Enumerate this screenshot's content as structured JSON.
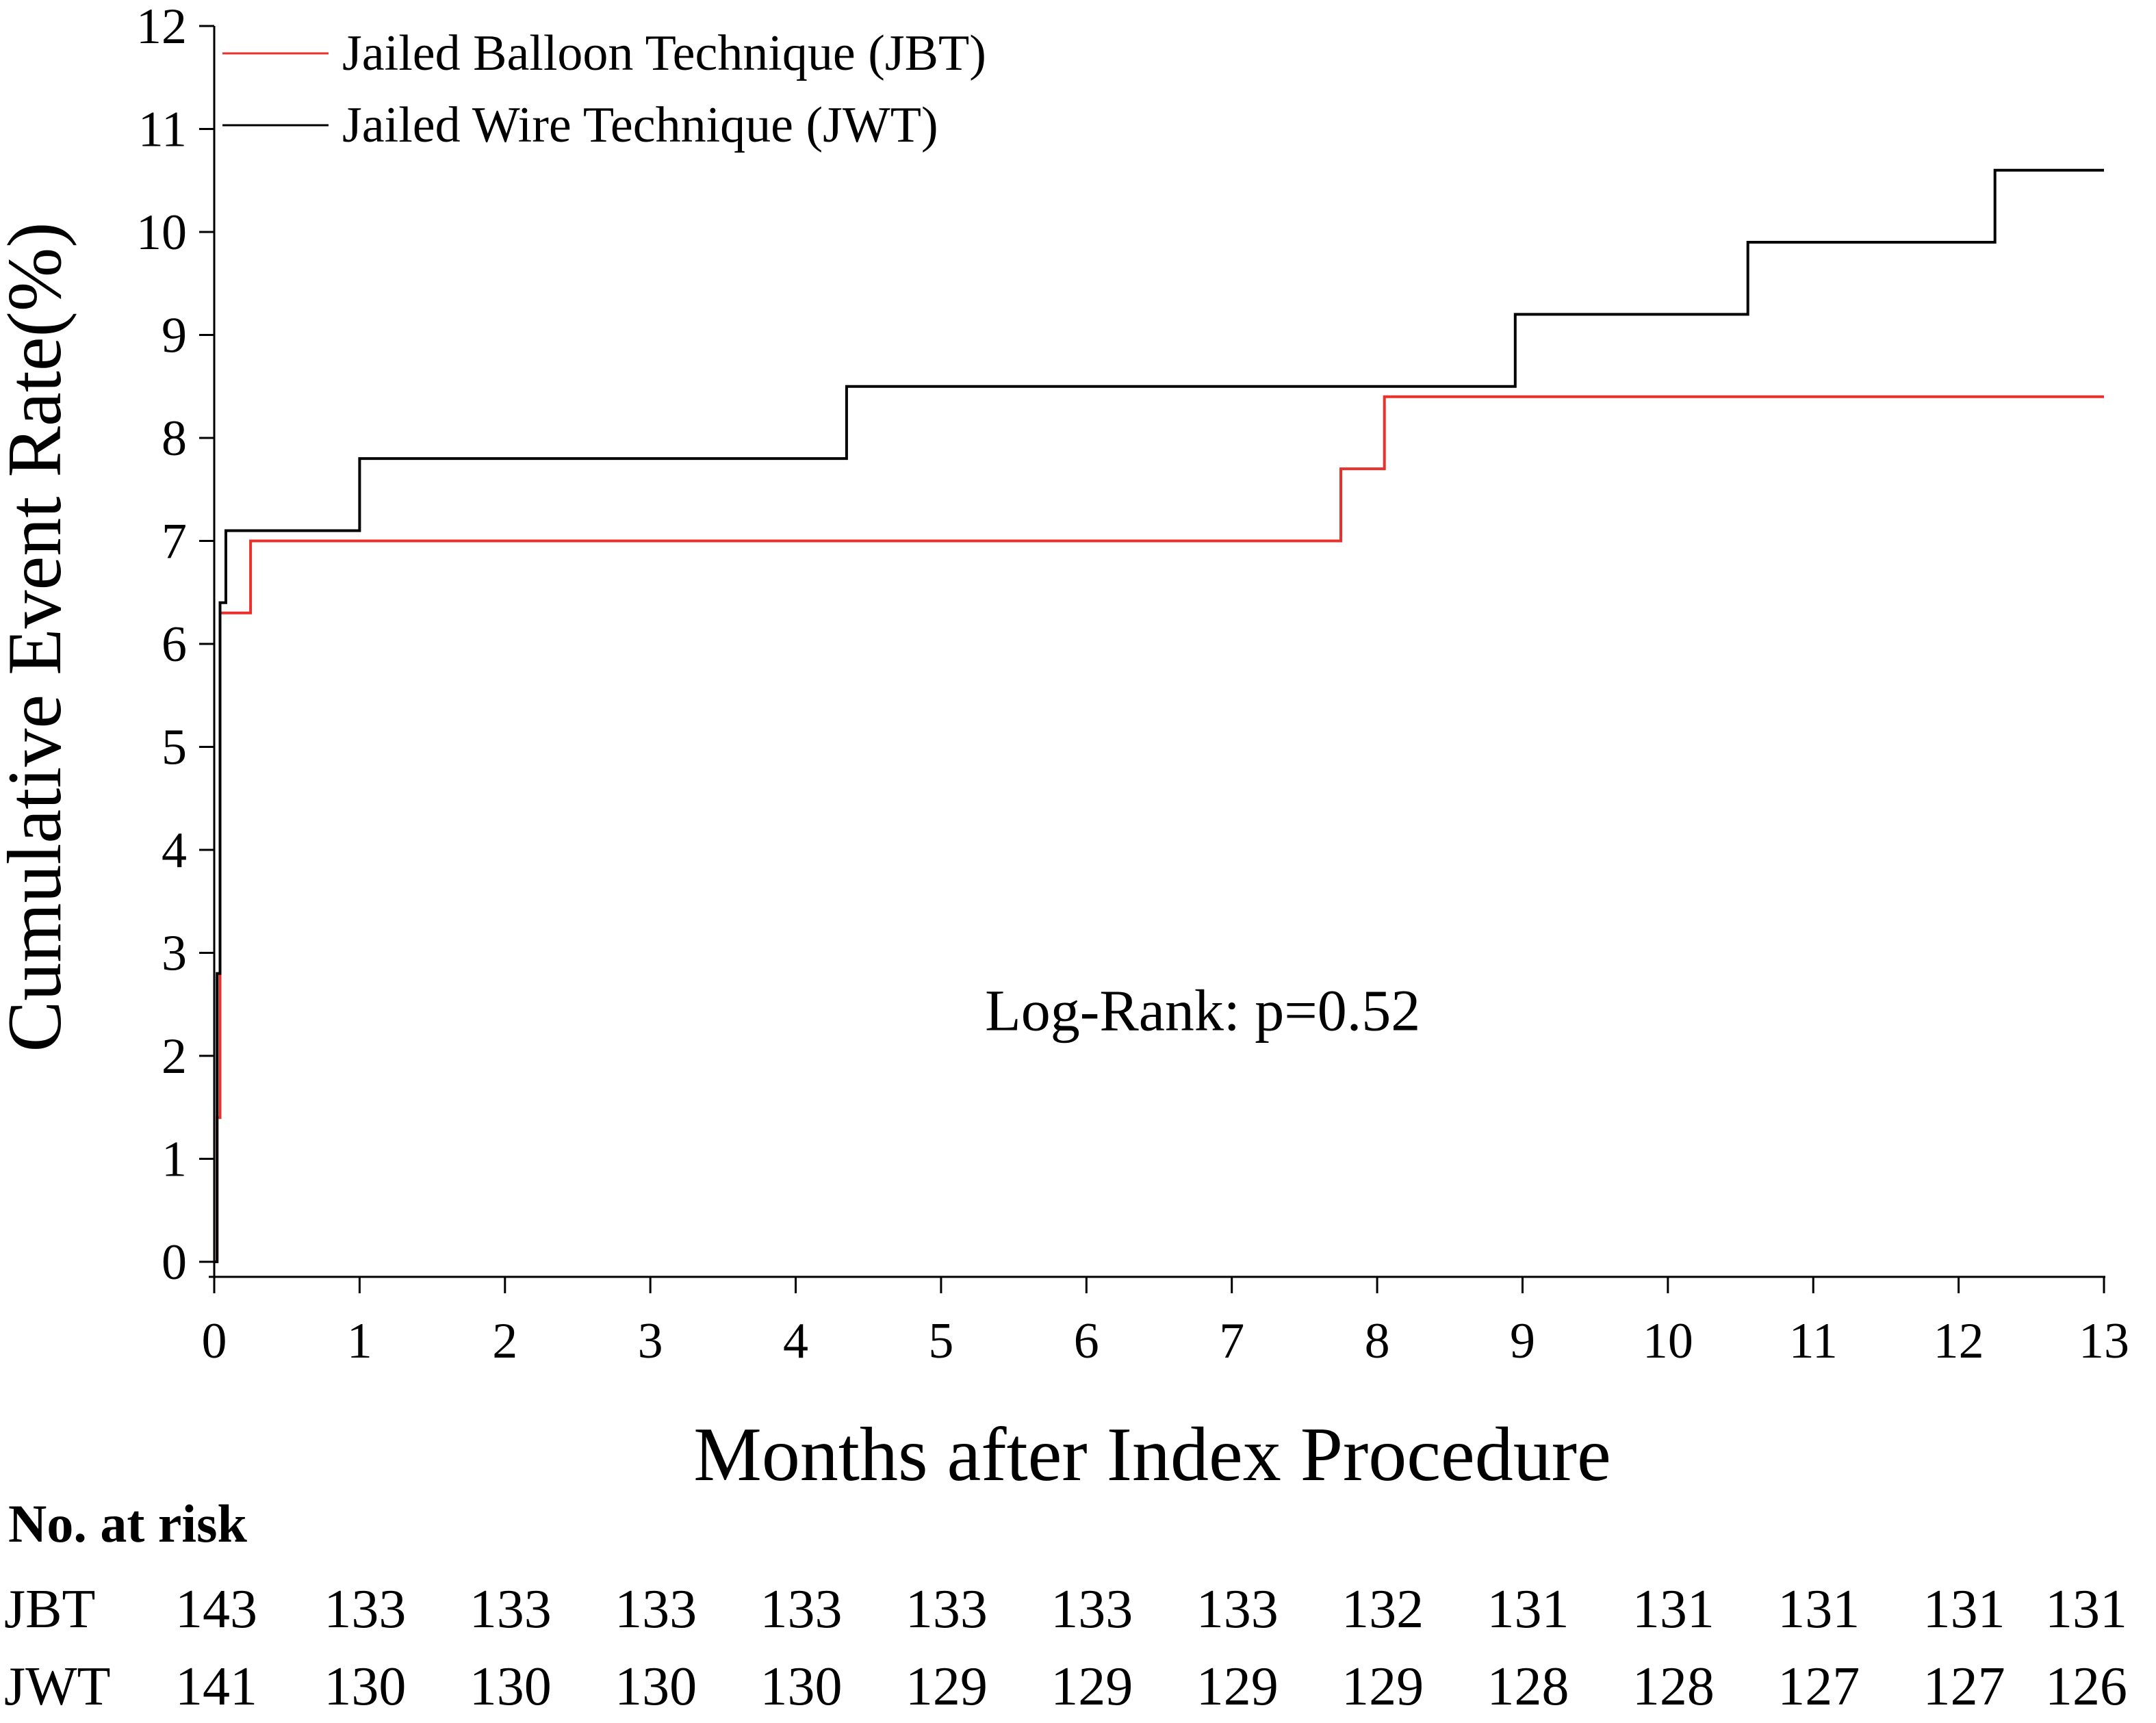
{
  "chart_data": {
    "type": "line",
    "step": true,
    "title": "",
    "xlabel": "Months after Index Procedure",
    "ylabel": "Cumulative Event Rate(%)",
    "xlim": [
      0,
      13
    ],
    "ylim": [
      0,
      12
    ],
    "x_ticks": [
      "0",
      "1",
      "2",
      "3",
      "4",
      "5",
      "6",
      "7",
      "8",
      "9",
      "10",
      "11",
      "12",
      "13"
    ],
    "y_ticks": [
      "0",
      "1",
      "2",
      "3",
      "4",
      "5",
      "6",
      "7",
      "8",
      "9",
      "10",
      "11",
      "12"
    ],
    "legend_position": "top-left",
    "series": [
      {
        "name": "Jailed Balloon Technique (JBT)",
        "color": "#e8312c",
        "x": [
          0,
          0.02,
          0.02,
          0.04,
          0.04,
          0.25,
          0.25,
          7.75,
          7.75,
          8.05,
          8.05,
          13
        ],
        "y": [
          0,
          0,
          1.4,
          1.4,
          6.3,
          6.3,
          7.0,
          7.0,
          7.7,
          7.7,
          8.4,
          8.4
        ]
      },
      {
        "name": "Jailed Wire Technique (JWT)",
        "color": "#000000",
        "x": [
          0,
          0.02,
          0.02,
          0.04,
          0.04,
          0.08,
          0.08,
          1.0,
          1.0,
          4.35,
          4.35,
          8.95,
          8.95,
          10.55,
          10.55,
          12.25,
          12.25,
          13
        ],
        "y": [
          0,
          0,
          2.8,
          2.8,
          6.4,
          6.4,
          7.1,
          7.1,
          7.8,
          7.8,
          8.5,
          8.5,
          9.2,
          9.2,
          9.9,
          9.9,
          10.6,
          10.6
        ]
      }
    ],
    "annotations": [
      {
        "text": "Log-Rank: p=0.52",
        "x": 6.8,
        "y": 2.45
      }
    ]
  },
  "risk_table": {
    "title": "No. at risk",
    "rows": [
      {
        "label": "JBT",
        "values": [
          "143",
          "133",
          "133",
          "133",
          "133",
          "133",
          "133",
          "133",
          "132",
          "131",
          "131",
          "131",
          "131",
          "131"
        ]
      },
      {
        "label": "JWT",
        "values": [
          "141",
          "130",
          "130",
          "130",
          "130",
          "129",
          "129",
          "129",
          "129",
          "128",
          "128",
          "127",
          "127",
          "126"
        ]
      }
    ]
  }
}
